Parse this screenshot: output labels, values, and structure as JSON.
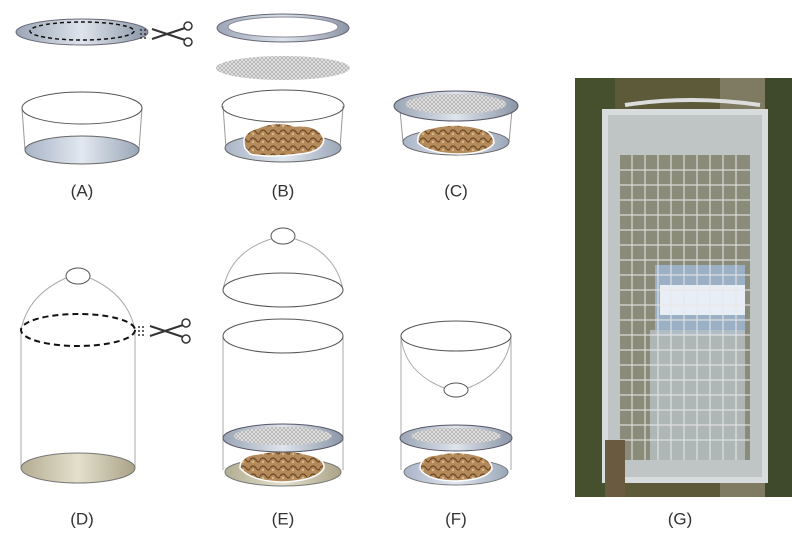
{
  "panels": [
    {
      "label": "(A)"
    },
    {
      "label": "(B)"
    },
    {
      "label": "(C)"
    },
    {
      "label": "(D)"
    },
    {
      "label": "(E)"
    },
    {
      "label": "(F)"
    },
    {
      "label": "(G)"
    }
  ]
}
